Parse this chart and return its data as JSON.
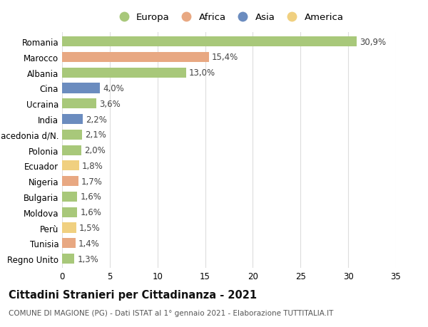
{
  "countries": [
    "Romania",
    "Marocco",
    "Albania",
    "Cina",
    "Ucraina",
    "India",
    "Macedonia d/N.",
    "Polonia",
    "Ecuador",
    "Nigeria",
    "Bulgaria",
    "Moldova",
    "Perù",
    "Tunisia",
    "Regno Unito"
  ],
  "values": [
    30.9,
    15.4,
    13.0,
    4.0,
    3.6,
    2.2,
    2.1,
    2.0,
    1.8,
    1.7,
    1.6,
    1.6,
    1.5,
    1.4,
    1.3
  ],
  "labels": [
    "30,9%",
    "15,4%",
    "13,0%",
    "4,0%",
    "3,6%",
    "2,2%",
    "2,1%",
    "2,0%",
    "1,8%",
    "1,7%",
    "1,6%",
    "1,6%",
    "1,5%",
    "1,4%",
    "1,3%"
  ],
  "continents": [
    "Europa",
    "Africa",
    "Europa",
    "Asia",
    "Europa",
    "Asia",
    "Europa",
    "Europa",
    "America",
    "Africa",
    "Europa",
    "Europa",
    "America",
    "Africa",
    "Europa"
  ],
  "continent_colors": {
    "Europa": "#a8c87a",
    "Africa": "#e8a882",
    "Asia": "#6b8cbf",
    "America": "#f0d080"
  },
  "xlim": [
    0,
    35
  ],
  "xticks": [
    0,
    5,
    10,
    15,
    20,
    25,
    30,
    35
  ],
  "title": "Cittadini Stranieri per Cittadinanza - 2021",
  "subtitle": "COMUNE DI MAGIONE (PG) - Dati ISTAT al 1° gennaio 2021 - Elaborazione TUTTITALIA.IT",
  "background_color": "#ffffff",
  "grid_color": "#dddddd",
  "bar_height": 0.65,
  "label_fontsize": 8.5,
  "tick_fontsize": 8.5,
  "title_fontsize": 10.5,
  "subtitle_fontsize": 7.5,
  "legend_fontsize": 9.5
}
